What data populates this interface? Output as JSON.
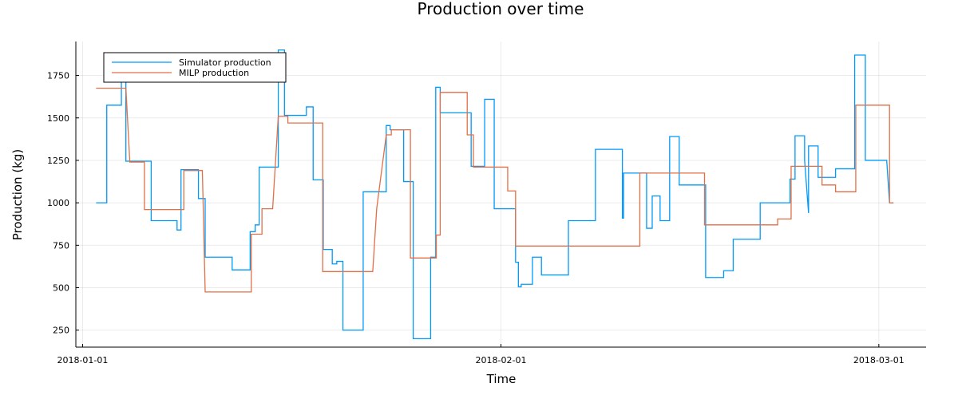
{
  "chart_data": {
    "type": "line",
    "title": "Production over time",
    "xlabel": "Time",
    "ylabel": "Production (kg)",
    "x_type": "date",
    "xlim": [
      "2017-12-31T12:00",
      "2018-03-04T12:00"
    ],
    "ylim": [
      150,
      1950
    ],
    "x_ticks": [
      "2018-01-01",
      "2018-02-01",
      "2018-03-01"
    ],
    "y_ticks": [
      250,
      500,
      750,
      1000,
      1250,
      1500,
      1750
    ],
    "grid": true,
    "legend_position": "top-left",
    "series": [
      {
        "name": "Simulator production",
        "color": "#009AFA",
        "points": [
          [
            "2018-01-02T00:00",
            1000
          ],
          [
            "2018-01-02T19:00",
            1000
          ],
          [
            "2018-01-02T19:00",
            1575
          ],
          [
            "2018-01-03T21:00",
            1575
          ],
          [
            "2018-01-03T21:00",
            1760
          ],
          [
            "2018-01-04T05:00",
            1760
          ],
          [
            "2018-01-04T05:00",
            1245
          ],
          [
            "2018-01-06T02:00",
            1245
          ],
          [
            "2018-01-06T02:00",
            895
          ],
          [
            "2018-01-08T00:00",
            895
          ],
          [
            "2018-01-08T00:00",
            840
          ],
          [
            "2018-01-08T07:00",
            840
          ],
          [
            "2018-01-08T07:00",
            1195
          ],
          [
            "2018-01-09T14:00",
            1195
          ],
          [
            "2018-01-09T14:00",
            1025
          ],
          [
            "2018-01-10T02:00",
            1025
          ],
          [
            "2018-01-10T02:00",
            680
          ],
          [
            "2018-01-12T02:00",
            680
          ],
          [
            "2018-01-12T02:00",
            605
          ],
          [
            "2018-01-13T10:00",
            605
          ],
          [
            "2018-01-13T10:00",
            830
          ],
          [
            "2018-01-13T19:00",
            830
          ],
          [
            "2018-01-13T19:00",
            870
          ],
          [
            "2018-01-14T02:00",
            870
          ],
          [
            "2018-01-14T02:00",
            1210
          ],
          [
            "2018-01-15T12:00",
            1210
          ],
          [
            "2018-01-15T12:00",
            1900
          ],
          [
            "2018-01-15T23:00",
            1900
          ],
          [
            "2018-01-15T23:00",
            1515
          ],
          [
            "2018-01-17T14:00",
            1515
          ],
          [
            "2018-01-17T14:00",
            1565
          ],
          [
            "2018-01-18T02:00",
            1565
          ],
          [
            "2018-01-18T02:00",
            1135
          ],
          [
            "2018-01-18T20:00",
            1135
          ],
          [
            "2018-01-18T20:00",
            725
          ],
          [
            "2018-01-19T12:00",
            725
          ],
          [
            "2018-01-19T12:00",
            640
          ],
          [
            "2018-01-19T20:00",
            640
          ],
          [
            "2018-01-19T20:00",
            655
          ],
          [
            "2018-01-20T07:00",
            655
          ],
          [
            "2018-01-20T07:00",
            250
          ],
          [
            "2018-01-21T19:00",
            250
          ],
          [
            "2018-01-21T19:00",
            1065
          ],
          [
            "2018-01-23T12:00",
            1065
          ],
          [
            "2018-01-23T12:00",
            1455
          ],
          [
            "2018-01-23T19:00",
            1455
          ],
          [
            "2018-01-23T19:00",
            1430
          ],
          [
            "2018-01-24T19:00",
            1430
          ],
          [
            "2018-01-24T19:00",
            1125
          ],
          [
            "2018-01-25T12:00",
            1125
          ],
          [
            "2018-01-25T12:00",
            200
          ],
          [
            "2018-01-26T19:00",
            200
          ],
          [
            "2018-01-26T19:00",
            680
          ],
          [
            "2018-01-27T04:00",
            680
          ],
          [
            "2018-01-27T04:00",
            1680
          ],
          [
            "2018-01-27T12:00",
            1680
          ],
          [
            "2018-01-27T12:00",
            1530
          ],
          [
            "2018-01-29T19:00",
            1530
          ],
          [
            "2018-01-29T19:00",
            1215
          ],
          [
            "2018-01-30T19:00",
            1215
          ],
          [
            "2018-01-30T19:00",
            1610
          ],
          [
            "2018-01-31T12:00",
            1610
          ],
          [
            "2018-01-31T12:00",
            965
          ],
          [
            "2018-02-02T02:00",
            965
          ],
          [
            "2018-02-02T02:00",
            650
          ],
          [
            "2018-02-02T07:00",
            650
          ],
          [
            "2018-02-02T07:00",
            505
          ],
          [
            "2018-02-02T12:00",
            505
          ],
          [
            "2018-02-02T12:00",
            520
          ],
          [
            "2018-02-03T08:00",
            520
          ],
          [
            "2018-02-03T08:00",
            680
          ],
          [
            "2018-02-04T00:00",
            680
          ],
          [
            "2018-02-04T00:00",
            575
          ],
          [
            "2018-02-06T00:00",
            575
          ],
          [
            "2018-02-06T00:00",
            895
          ],
          [
            "2018-02-08T00:00",
            895
          ],
          [
            "2018-02-08T00:00",
            1315
          ],
          [
            "2018-02-10T00:00",
            1315
          ],
          [
            "2018-02-10T00:00",
            910
          ],
          [
            "2018-02-10T02:00",
            910
          ],
          [
            "2018-02-10T02:00",
            1175
          ],
          [
            "2018-02-11T19:00",
            1175
          ],
          [
            "2018-02-11T19:00",
            850
          ],
          [
            "2018-02-12T05:00",
            850
          ],
          [
            "2018-02-12T05:00",
            1040
          ],
          [
            "2018-02-12T19:00",
            1040
          ],
          [
            "2018-02-12T19:00",
            895
          ],
          [
            "2018-02-13T12:00",
            895
          ],
          [
            "2018-02-13T12:00",
            1390
          ],
          [
            "2018-02-14T05:00",
            1390
          ],
          [
            "2018-02-14T05:00",
            1105
          ],
          [
            "2018-02-16T04:00",
            1105
          ],
          [
            "2018-02-16T04:00",
            560
          ],
          [
            "2018-02-17T12:00",
            560
          ],
          [
            "2018-02-17T12:00",
            600
          ],
          [
            "2018-02-18T05:00",
            600
          ],
          [
            "2018-02-18T05:00",
            785
          ],
          [
            "2018-02-20T05:00",
            785
          ],
          [
            "2018-02-20T05:00",
            1000
          ],
          [
            "2018-02-22T10:00",
            1000
          ],
          [
            "2018-02-22T10:00",
            1140
          ],
          [
            "2018-02-22T19:00",
            1140
          ],
          [
            "2018-02-22T19:00",
            1395
          ],
          [
            "2018-02-23T12:00",
            1395
          ],
          [
            "2018-02-23T12:00",
            1250
          ],
          [
            "2018-02-23T19:00",
            940
          ],
          [
            "2018-02-23T19:00",
            1335
          ],
          [
            "2018-02-24T12:00",
            1335
          ],
          [
            "2018-02-24T12:00",
            1150
          ],
          [
            "2018-02-25T19:00",
            1150
          ],
          [
            "2018-02-25T19:00",
            1200
          ],
          [
            "2018-02-27T05:00",
            1200
          ],
          [
            "2018-02-27T05:00",
            1870
          ],
          [
            "2018-02-28T00:00",
            1870
          ],
          [
            "2018-02-28T00:00",
            1250
          ],
          [
            "2018-03-01T14:00",
            1250
          ],
          [
            "2018-03-01T19:00",
            1000
          ],
          [
            "2018-03-02T02:00",
            1000
          ]
        ]
      },
      {
        "name": "MILP production",
        "color": "#E26F46",
        "points": [
          [
            "2018-01-02T00:00",
            1675
          ],
          [
            "2018-01-04T05:00",
            1675
          ],
          [
            "2018-01-04T12:00",
            1240
          ],
          [
            "2018-01-05T14:00",
            1240
          ],
          [
            "2018-01-05T14:00",
            960
          ],
          [
            "2018-01-08T12:00",
            960
          ],
          [
            "2018-01-08T12:00",
            1190
          ],
          [
            "2018-01-09T21:00",
            1190
          ],
          [
            "2018-01-10T02:00",
            475
          ],
          [
            "2018-01-13T12:00",
            475
          ],
          [
            "2018-01-13T12:00",
            815
          ],
          [
            "2018-01-14T07:00",
            815
          ],
          [
            "2018-01-14T07:00",
            965
          ],
          [
            "2018-01-15T02:00",
            965
          ],
          [
            "2018-01-15T12:00",
            1510
          ],
          [
            "2018-01-16T05:00",
            1510
          ],
          [
            "2018-01-16T05:00",
            1470
          ],
          [
            "2018-01-18T19:00",
            1470
          ],
          [
            "2018-01-18T19:00",
            595
          ],
          [
            "2018-01-22T12:00",
            595
          ],
          [
            "2018-01-22T19:00",
            965
          ],
          [
            "2018-01-23T12:00",
            1400
          ],
          [
            "2018-01-23T21:00",
            1400
          ],
          [
            "2018-01-23T21:00",
            1430
          ],
          [
            "2018-01-25T07:00",
            1430
          ],
          [
            "2018-01-25T07:00",
            675
          ],
          [
            "2018-01-27T05:00",
            675
          ],
          [
            "2018-01-27T05:00",
            810
          ],
          [
            "2018-01-27T12:00",
            810
          ],
          [
            "2018-01-27T12:00",
            1650
          ],
          [
            "2018-01-29T12:00",
            1650
          ],
          [
            "2018-01-29T12:00",
            1400
          ],
          [
            "2018-01-29T23:00",
            1400
          ],
          [
            "2018-01-29T23:00",
            1210
          ],
          [
            "2018-02-01T12:00",
            1210
          ],
          [
            "2018-02-01T12:00",
            1070
          ],
          [
            "2018-02-02T02:00",
            1070
          ],
          [
            "2018-02-02T02:00",
            745
          ],
          [
            "2018-02-11T07:00",
            745
          ],
          [
            "2018-02-11T07:00",
            1175
          ],
          [
            "2018-02-16T02:00",
            1175
          ],
          [
            "2018-02-16T02:00",
            870
          ],
          [
            "2018-02-21T12:00",
            870
          ],
          [
            "2018-02-21T12:00",
            905
          ],
          [
            "2018-02-22T12:00",
            905
          ],
          [
            "2018-02-22T12:00",
            1215
          ],
          [
            "2018-02-24T19:00",
            1215
          ],
          [
            "2018-02-24T19:00",
            1105
          ],
          [
            "2018-02-25T19:00",
            1105
          ],
          [
            "2018-02-25T19:00",
            1065
          ],
          [
            "2018-02-27T07:00",
            1065
          ],
          [
            "2018-02-27T07:00",
            1575
          ],
          [
            "2018-03-01T19:00",
            1575
          ],
          [
            "2018-03-01T19:00",
            1000
          ],
          [
            "2018-03-02T02:00",
            1000
          ]
        ]
      }
    ]
  }
}
